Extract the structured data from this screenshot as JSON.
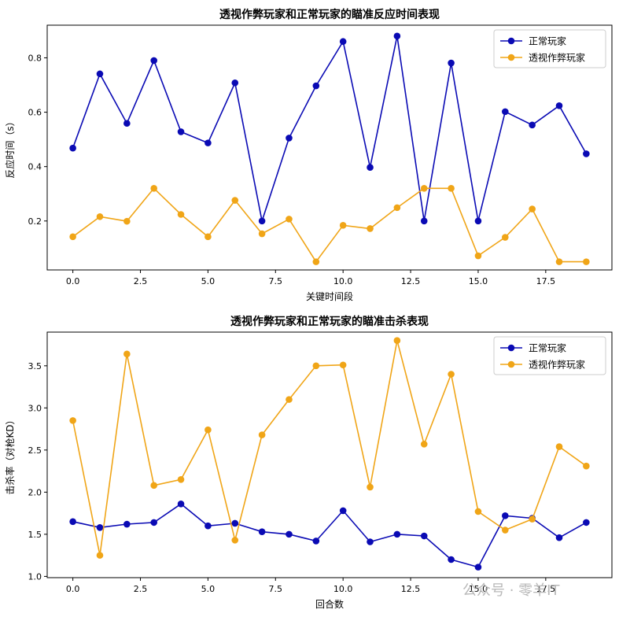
{
  "chart_data": [
    {
      "type": "line",
      "title": "透视作弊玩家和正常玩家的瞄准反应时间表现",
      "xlabel": "关键时间段",
      "ylabel": "反应时间（s）",
      "x": [
        0,
        1,
        2,
        3,
        4,
        5,
        6,
        7,
        8,
        9,
        10,
        11,
        12,
        13,
        14,
        15,
        16,
        17,
        18,
        19
      ],
      "xlim": [
        -0.95,
        19.95
      ],
      "ylim": [
        0.02,
        0.92
      ],
      "xticks": [
        0.0,
        2.5,
        5.0,
        7.5,
        10.0,
        12.5,
        15.0,
        17.5
      ],
      "xtick_labels": [
        "0.0",
        "2.5",
        "5.0",
        "7.5",
        "10.0",
        "12.5",
        "15.0",
        "17.5"
      ],
      "yticks": [
        0.2,
        0.4,
        0.6,
        0.8
      ],
      "ytick_labels": [
        "0.2",
        "0.4",
        "0.6",
        "0.8"
      ],
      "legend_position": "top-right",
      "grid": false,
      "series": [
        {
          "name": "正常玩家",
          "color": "#0a0ab4",
          "values": [
            0.468,
            0.741,
            0.559,
            0.79,
            0.528,
            0.487,
            0.708,
            0.2,
            0.505,
            0.697,
            0.86,
            0.397,
            0.88,
            0.2,
            0.781,
            0.2,
            0.602,
            0.553,
            0.624,
            0.447
          ]
        },
        {
          "name": "透视作弊玩家",
          "color": "#f0a517",
          "values": [
            0.142,
            0.216,
            0.199,
            0.32,
            0.224,
            0.142,
            0.276,
            0.153,
            0.207,
            0.05,
            0.184,
            0.172,
            0.249,
            0.32,
            0.32,
            0.072,
            0.14,
            0.244,
            0.05,
            0.05
          ]
        }
      ]
    },
    {
      "type": "line",
      "title": "透视作弊玩家和正常玩家的瞄准击杀表现",
      "xlabel": "回合数",
      "ylabel": "击杀率（对枪KD）",
      "x": [
        0,
        1,
        2,
        3,
        4,
        5,
        6,
        7,
        8,
        9,
        10,
        11,
        12,
        13,
        14,
        15,
        16,
        17,
        18,
        19
      ],
      "xlim": [
        -0.95,
        19.95
      ],
      "ylim": [
        0.985,
        3.9
      ],
      "xticks": [
        0.0,
        2.5,
        5.0,
        7.5,
        10.0,
        12.5,
        15.0,
        17.5
      ],
      "xtick_labels": [
        "0.0",
        "2.5",
        "5.0",
        "7.5",
        "10.0",
        "12.5",
        "15.0",
        "17.5"
      ],
      "yticks": [
        1.0,
        1.5,
        2.0,
        2.5,
        3.0,
        3.5
      ],
      "ytick_labels": [
        "1.0",
        "1.5",
        "2.0",
        "2.5",
        "3.0",
        "3.5"
      ],
      "legend_position": "top-right",
      "grid": false,
      "series": [
        {
          "name": "正常玩家",
          "color": "#0a0ab4",
          "values": [
            1.65,
            1.58,
            1.62,
            1.64,
            1.86,
            1.6,
            1.63,
            1.53,
            1.5,
            1.42,
            1.78,
            1.41,
            1.5,
            1.48,
            1.2,
            1.11,
            1.72,
            1.69,
            1.46,
            1.64
          ]
        },
        {
          "name": "透视作弊玩家",
          "color": "#f0a517",
          "values": [
            2.85,
            1.25,
            3.64,
            2.08,
            2.15,
            2.74,
            1.43,
            2.68,
            3.1,
            3.5,
            3.51,
            2.06,
            3.8,
            2.57,
            3.4,
            1.77,
            1.55,
            1.68,
            2.54,
            2.31
          ]
        }
      ]
    }
  ],
  "watermark": "公众号 · 零羊IT"
}
